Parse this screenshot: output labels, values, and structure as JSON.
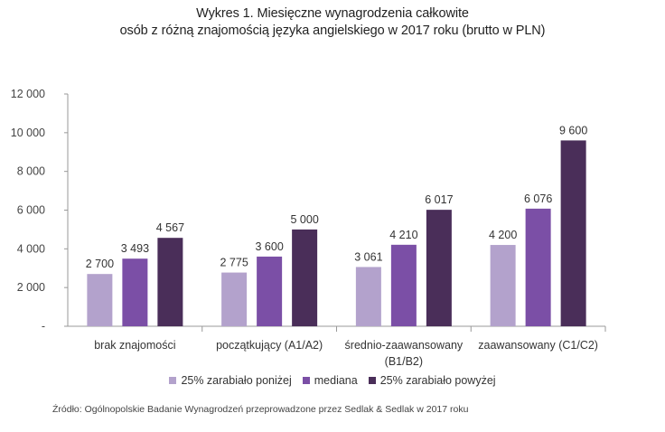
{
  "chart_data": {
    "type": "bar",
    "title": "Wykres 1. Miesięczne wynagrodzenia całkowite",
    "subtitle": "osób z różną znajomością języka angielskiego w 2017 roku (brutto w PLN)",
    "categories": [
      [
        "brak znajomości"
      ],
      [
        "początkujący (A1/A2)"
      ],
      [
        "średnio-zaawansowany",
        "(B1/B2)"
      ],
      [
        "zaawansowany (C1/C2)"
      ]
    ],
    "series": [
      {
        "name": "25% zarabiało poniżej",
        "color": "#b3a2cc",
        "values": [
          2700,
          2775,
          3061,
          4200
        ],
        "labels": [
          "2 700",
          "2 775",
          "3 061",
          "4 200"
        ]
      },
      {
        "name": "mediana",
        "color": "#7b4fa6",
        "values": [
          3493,
          3600,
          4210,
          6076
        ],
        "labels": [
          "3 493",
          "3 600",
          "4 210",
          "6 076"
        ]
      },
      {
        "name": "25% zarabiało powyżej",
        "color": "#4a2e59",
        "values": [
          4567,
          5000,
          6017,
          9600
        ],
        "labels": [
          "4 567",
          "5 000",
          "6 017",
          "9 600"
        ]
      }
    ],
    "ylim": [
      0,
      12000
    ],
    "yticks": [
      0,
      2000,
      4000,
      6000,
      8000,
      10000,
      12000
    ],
    "ytick_labels": [
      "-",
      "2 000",
      "4 000",
      "6 000",
      "8 000",
      "10 000",
      "12 000"
    ],
    "legend_position": "bottom",
    "source": "Źródło: Ogólnopolskie Badanie Wynagrodzeń przeprowadzone przez Sedlak & Sedlak w 2017 roku"
  }
}
